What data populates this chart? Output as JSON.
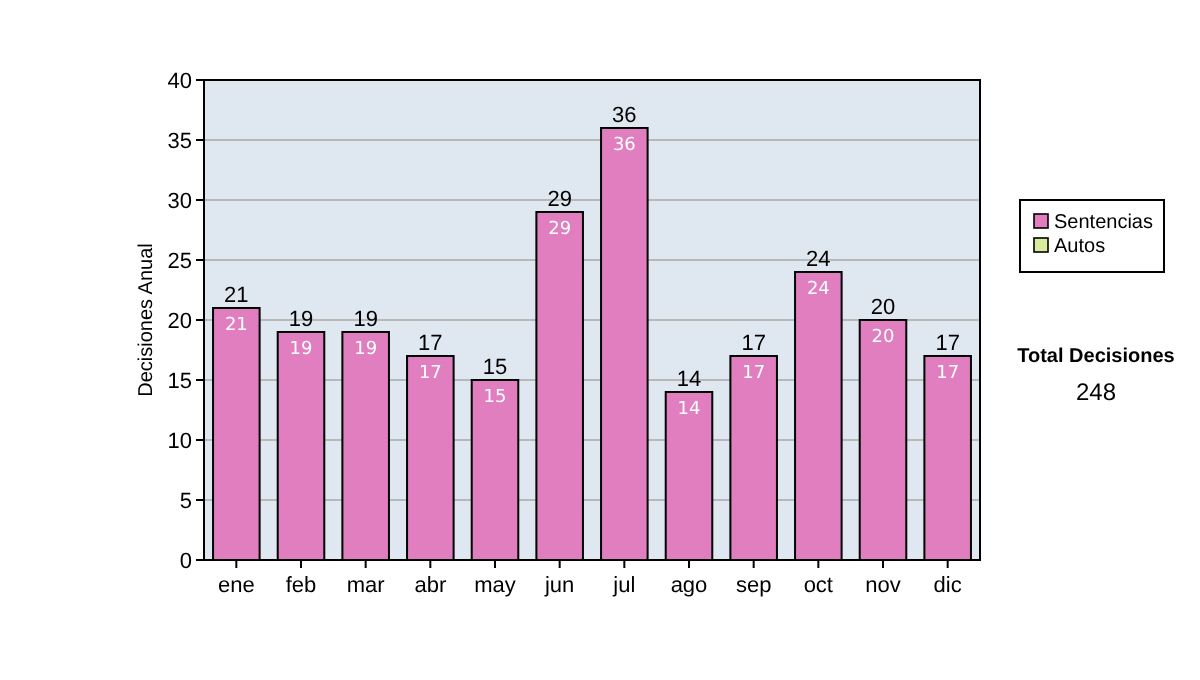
{
  "chart_data": {
    "type": "bar",
    "ylabel": "Decisiones Anual",
    "categories": [
      "ene",
      "feb",
      "mar",
      "abr",
      "may",
      "jun",
      "jul",
      "ago",
      "sep",
      "oct",
      "nov",
      "dic"
    ],
    "stacked": true,
    "series": [
      {
        "name": "Sentencias",
        "color": "#e07ec0",
        "values": [
          21,
          19,
          19,
          17,
          15,
          29,
          36,
          14,
          17,
          24,
          20,
          17
        ],
        "value_labels": [
          "21",
          "19",
          "19",
          "17",
          "15",
          "29",
          "36",
          "14",
          "17",
          "24",
          "20",
          "17"
        ]
      },
      {
        "name": "Autos",
        "color": "#d8eca0",
        "values": [
          0,
          0,
          0,
          0,
          0,
          0,
          0,
          0,
          0,
          0,
          0,
          0
        ]
      }
    ],
    "totals": [
      "21",
      "19",
      "19",
      "17",
      "15",
      "29",
      "36",
      "14",
      "17",
      "24",
      "20",
      "17"
    ],
    "ylim": [
      0,
      40
    ],
    "yticks": [
      0,
      5,
      10,
      15,
      20,
      25,
      30,
      35,
      40
    ],
    "grid": "y",
    "legend": "right",
    "annotations": [
      "Total Decisiones",
      "248"
    ]
  }
}
